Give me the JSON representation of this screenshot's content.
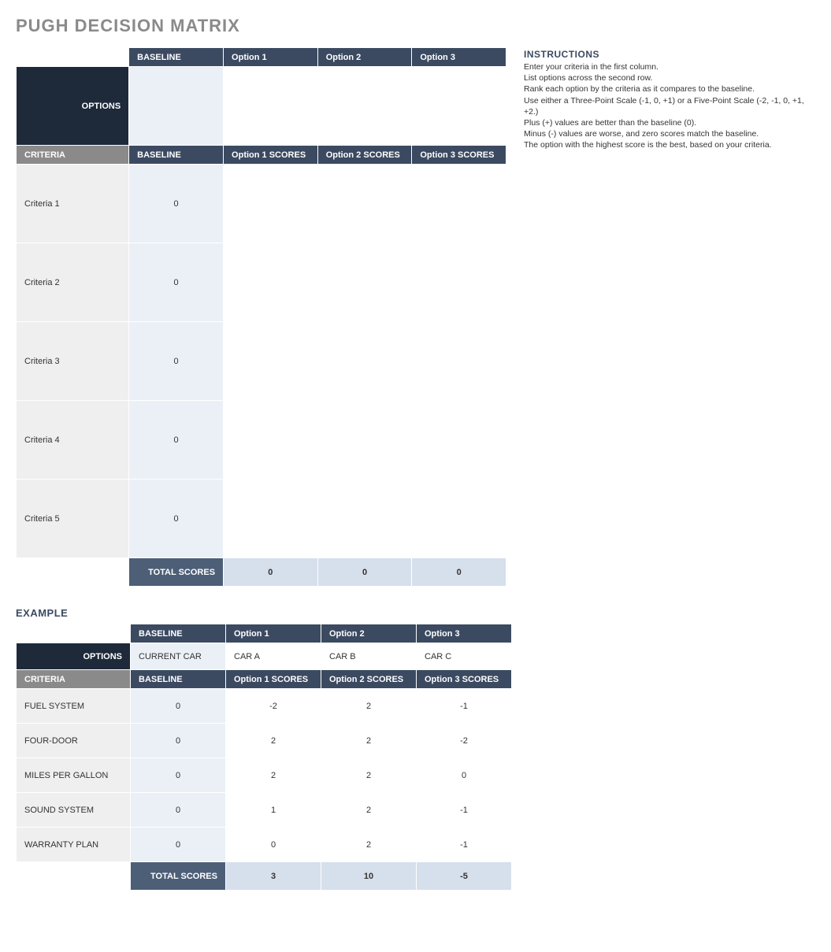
{
  "title": "PUGH DECISION MATRIX",
  "colors": {
    "title_grey": "#8a8a8a",
    "header_dark": "#3b4a61",
    "options_dark": "#1e2a3a",
    "totals_dark": "#4d5e77",
    "baseline_fill": "#eaf0f6",
    "criteria_fill": "#efefef",
    "totals_fill": "#d6dfec",
    "criteria_hdr": "#8a8a8a"
  },
  "main": {
    "options_label": "OPTIONS",
    "criteria_label": "CRITERIA",
    "headers": [
      "BASELINE",
      "Option 1",
      "Option 2",
      "Option 3"
    ],
    "option_values": [
      "",
      "",
      "",
      ""
    ],
    "score_headers": [
      "BASELINE",
      "Option 1 SCORES",
      "Option 2 SCORES",
      "Option 3 SCORES"
    ],
    "rows": [
      {
        "label": "Criteria 1",
        "baseline": "0",
        "scores": [
          "",
          "",
          ""
        ]
      },
      {
        "label": "Criteria 2",
        "baseline": "0",
        "scores": [
          "",
          "",
          ""
        ]
      },
      {
        "label": "Criteria 3",
        "baseline": "0",
        "scores": [
          "",
          "",
          ""
        ]
      },
      {
        "label": "Criteria 4",
        "baseline": "0",
        "scores": [
          "",
          "",
          ""
        ]
      },
      {
        "label": "Criteria 5",
        "baseline": "0",
        "scores": [
          "",
          "",
          ""
        ]
      }
    ],
    "totals_label": "TOTAL SCORES",
    "totals": [
      "0",
      "0",
      "0"
    ]
  },
  "instructions": {
    "heading": "INSTRUCTIONS",
    "lines": [
      "Enter your criteria in the first column.",
      "List options across the second row.",
      "Rank each option by the criteria as it compares to the baseline.",
      "Use either a Three-Point Scale (-1, 0, +1) or a Five-Point Scale (-2, -1, 0, +1, +2.)",
      "Plus (+) values are better than the baseline (0).",
      "Minus (-) values are worse, and zero scores match the baseline.",
      "The option with the highest score is the best, based on your criteria."
    ]
  },
  "example": {
    "title": "EXAMPLE",
    "options_label": "OPTIONS",
    "criteria_label": "CRITERIA",
    "headers": [
      "BASELINE",
      "Option 1",
      "Option 2",
      "Option 3"
    ],
    "option_values": [
      "CURRENT CAR",
      "CAR A",
      "CAR B",
      "CAR C"
    ],
    "score_headers": [
      "BASELINE",
      "Option 1 SCORES",
      "Option 2 SCORES",
      "Option 3 SCORES"
    ],
    "rows": [
      {
        "label": "FUEL SYSTEM",
        "baseline": "0",
        "scores": [
          "-2",
          "2",
          "-1"
        ]
      },
      {
        "label": "FOUR-DOOR",
        "baseline": "0",
        "scores": [
          "2",
          "2",
          "-2"
        ]
      },
      {
        "label": "MILES PER GALLON",
        "baseline": "0",
        "scores": [
          "2",
          "2",
          "0"
        ]
      },
      {
        "label": "SOUND SYSTEM",
        "baseline": "0",
        "scores": [
          "1",
          "2",
          "-1"
        ]
      },
      {
        "label": "WARRANTY PLAN",
        "baseline": "0",
        "scores": [
          "0",
          "2",
          "-1"
        ]
      }
    ],
    "totals_label": "TOTAL SCORES",
    "totals": [
      "3",
      "10",
      "-5"
    ]
  }
}
